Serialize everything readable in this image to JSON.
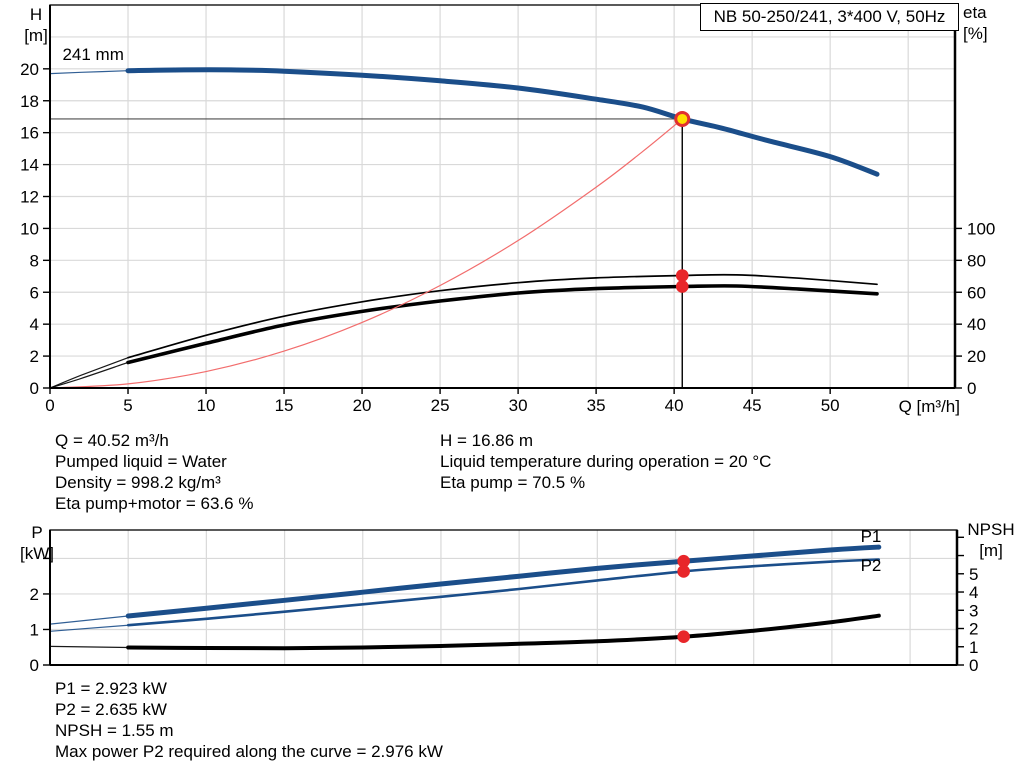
{
  "header": {
    "pump_title": "NB 50-250/241, 3*400 V, 50Hz"
  },
  "axes_labels": {
    "h": [
      "H",
      "[m]"
    ],
    "eta": [
      "eta",
      "[%]"
    ],
    "q": "Q [m³/h]",
    "p": [
      "P",
      "[kW]"
    ],
    "npsh": [
      "NPSH",
      "[m]"
    ]
  },
  "info_top": {
    "left": [
      "Q = 40.52 m³/h",
      "Pumped liquid = Water",
      "Density = 998.2 kg/m³",
      "Eta pump+motor = 63.6 %"
    ],
    "right": [
      "H = 16.86 m",
      "Liquid temperature during operation = 20 °C",
      "Eta pump = 70.5 %"
    ]
  },
  "info_bottom": [
    "P1 = 2.923 kW",
    "P2 = 2.635 kW",
    "NPSH = 1.55 m",
    "Max power P2 required along the curve = 2.976 kW"
  ],
  "colors": {
    "curve_blue": "#1b4e8a",
    "curve_black": "#000000",
    "system_red": "#f26d6d",
    "dot_red": "#e8262a",
    "duty_fill": "#ffdf00",
    "duty_ring": "#e03030",
    "grid": "#d9d9d9",
    "axis": "#000000",
    "crosshair": "#4d4d4d"
  },
  "chart_data": [
    {
      "type": "line",
      "title": "NB 50-250/241, 3*400 V, 50Hz",
      "xlabel": "Q [m³/h]",
      "ylabel_left": "H [m]",
      "ylabel_right": "eta [%]",
      "xlim": [
        0,
        58
      ],
      "ylim_left": [
        0,
        24
      ],
      "ylim_right": [
        0,
        240
      ],
      "x_ticks": [
        0,
        5,
        10,
        15,
        20,
        25,
        30,
        35,
        40,
        45,
        50
      ],
      "y_ticks_left": [
        0,
        2,
        4,
        6,
        8,
        10,
        12,
        14,
        16,
        18,
        20
      ],
      "y_ticks_right": [
        0,
        20,
        40,
        60,
        80,
        100
      ],
      "grid_x": [
        5,
        10,
        15,
        20,
        25,
        30,
        35,
        40,
        45,
        50,
        55
      ],
      "grid_y_left": [
        2,
        4,
        6,
        8,
        10,
        12,
        14,
        16,
        18,
        20,
        22
      ],
      "crosshair": {
        "x": 40.52,
        "y": 16.86
      },
      "series": [
        {
          "name": "head-curve",
          "axis": "left",
          "color": "#1b4e8a",
          "width": 5,
          "thin": [
            [
              0,
              19.7
            ],
            [
              2,
              19.78
            ],
            [
              5,
              19.88
            ]
          ],
          "points": [
            [
              5,
              19.88
            ],
            [
              8,
              19.93
            ],
            [
              12,
              19.93
            ],
            [
              15,
              19.85
            ],
            [
              20,
              19.6
            ],
            [
              25,
              19.25
            ],
            [
              30,
              18.8
            ],
            [
              35,
              18.1
            ],
            [
              38,
              17.6
            ],
            [
              40.52,
              16.86
            ],
            [
              43,
              16.3
            ],
            [
              46,
              15.5
            ],
            [
              50,
              14.5
            ],
            [
              53,
              13.4
            ]
          ]
        },
        {
          "name": "eta-pump-curve",
          "axis": "right",
          "color": "#000000",
          "width": 1.7,
          "thin": [
            [
              0,
              0
            ],
            [
              2,
              8
            ],
            [
              5,
              19
            ]
          ],
          "points": [
            [
              5,
              19
            ],
            [
              10,
              33
            ],
            [
              15,
              45
            ],
            [
              20,
              54
            ],
            [
              25,
              61
            ],
            [
              30,
              66
            ],
            [
              35,
              69
            ],
            [
              40.52,
              70.5
            ],
            [
              44,
              70.9
            ],
            [
              48,
              68.8
            ],
            [
              53,
              65
            ]
          ]
        },
        {
          "name": "eta-pump-motor-curve",
          "axis": "right",
          "color": "#000000",
          "width": 3.6,
          "thin": [
            [
              0,
              0
            ],
            [
              2,
              6
            ],
            [
              5,
              16
            ]
          ],
          "points": [
            [
              5,
              16
            ],
            [
              10,
              28
            ],
            [
              15,
              39.5
            ],
            [
              20,
              48
            ],
            [
              25,
              54.5
            ],
            [
              30,
              59.5
            ],
            [
              35,
              62.3
            ],
            [
              40.52,
              63.6
            ],
            [
              44,
              63.9
            ],
            [
              48,
              62
            ],
            [
              53,
              59
            ]
          ]
        },
        {
          "name": "system-curve",
          "axis": "left",
          "color": "#f26d6d",
          "width": 1.2,
          "points": [
            [
              0,
              0
            ],
            [
              5,
              0.26
            ],
            [
              10,
              1.03
            ],
            [
              15,
              2.31
            ],
            [
              20,
              4.11
            ],
            [
              25,
              6.42
            ],
            [
              30,
              9.24
            ],
            [
              35,
              12.58
            ],
            [
              38,
              14.83
            ],
            [
              40.52,
              16.86
            ]
          ]
        }
      ],
      "markers": [
        {
          "name": "duty-point",
          "style": "duty",
          "x": 40.52,
          "axis": "left",
          "value": 16.86
        },
        {
          "name": "eta-pump-point",
          "style": "dot",
          "x": 40.52,
          "axis": "right",
          "value": 70.5
        },
        {
          "name": "eta-pump-motor-point",
          "style": "dot",
          "x": 40.52,
          "axis": "right",
          "value": 63.6
        }
      ],
      "annotations": [
        {
          "name": "impeller-diameter-label",
          "text": "241 mm",
          "x": 0.8,
          "y": 20.9,
          "axis": "left",
          "anchor": "start",
          "color": "#000000"
        }
      ]
    },
    {
      "type": "line",
      "title": "",
      "xlabel": "",
      "ylabel_left": "P [kW]",
      "ylabel_right": "NPSH [m]",
      "xlim": [
        0,
        58
      ],
      "ylim_left": [
        0,
        3.8
      ],
      "ylim_right": [
        0,
        7.4
      ],
      "x_ticks": [],
      "y_ticks_left": [
        0,
        1,
        2
      ],
      "y_ticks_left_extra": [
        3
      ],
      "y_ticks_right": [
        0,
        1,
        2,
        3,
        4,
        5
      ],
      "y_ticks_right_extra": [
        6,
        7
      ],
      "grid_x": [
        5,
        10,
        15,
        20,
        25,
        30,
        35,
        40,
        45,
        50,
        55
      ],
      "grid_y_left": [
        1,
        2,
        3
      ],
      "series": [
        {
          "name": "p1-curve",
          "axis": "left",
          "color": "#1b4e8a",
          "width": 5,
          "thin": [
            [
              0,
              1.15
            ],
            [
              5,
              1.38
            ]
          ],
          "points": [
            [
              5,
              1.38
            ],
            [
              10,
              1.6
            ],
            [
              15,
              1.82
            ],
            [
              20,
              2.05
            ],
            [
              25,
              2.28
            ],
            [
              30,
              2.5
            ],
            [
              35,
              2.72
            ],
            [
              40.52,
              2.923
            ],
            [
              45,
              3.07
            ],
            [
              50,
              3.24
            ],
            [
              53,
              3.32
            ]
          ]
        },
        {
          "name": "p2-curve",
          "axis": "left",
          "color": "#1b4e8a",
          "width": 2.6,
          "thin": [
            [
              0,
              0.95
            ],
            [
              5,
              1.12
            ]
          ],
          "points": [
            [
              5,
              1.12
            ],
            [
              10,
              1.3
            ],
            [
              15,
              1.5
            ],
            [
              20,
              1.71
            ],
            [
              25,
              1.92
            ],
            [
              30,
              2.14
            ],
            [
              35,
              2.38
            ],
            [
              40.52,
              2.635
            ],
            [
              45,
              2.78
            ],
            [
              50,
              2.91
            ],
            [
              53,
              2.97
            ]
          ]
        },
        {
          "name": "npsh-curve",
          "axis": "right",
          "color": "#000000",
          "width": 4,
          "thin": [
            [
              0,
              1.02
            ],
            [
              5,
              0.96
            ]
          ],
          "points": [
            [
              5,
              0.96
            ],
            [
              10,
              0.93
            ],
            [
              15,
              0.92
            ],
            [
              20,
              0.96
            ],
            [
              25,
              1.04
            ],
            [
              30,
              1.16
            ],
            [
              35,
              1.3
            ],
            [
              40.52,
              1.55
            ],
            [
              45,
              1.88
            ],
            [
              50,
              2.35
            ],
            [
              53,
              2.7
            ]
          ]
        }
      ],
      "markers": [
        {
          "name": "p1-point",
          "style": "dot",
          "x": 40.52,
          "axis": "left",
          "value": 2.923
        },
        {
          "name": "p2-point",
          "style": "dot",
          "x": 40.52,
          "axis": "left",
          "value": 2.635
        },
        {
          "name": "npsh-point",
          "style": "dot",
          "x": 40.52,
          "axis": "right",
          "value": 1.55
        }
      ],
      "annotations": [
        {
          "name": "p1-curve-label",
          "text": "P1",
          "x": 52.5,
          "y": 3.62,
          "axis": "left",
          "anchor": "middle",
          "color": "#1b4e8a"
        },
        {
          "name": "p2-curve-label",
          "text": "P2",
          "x": 52.5,
          "y": 2.8,
          "axis": "left",
          "anchor": "middle",
          "color": "#1b4e8a"
        }
      ]
    }
  ]
}
